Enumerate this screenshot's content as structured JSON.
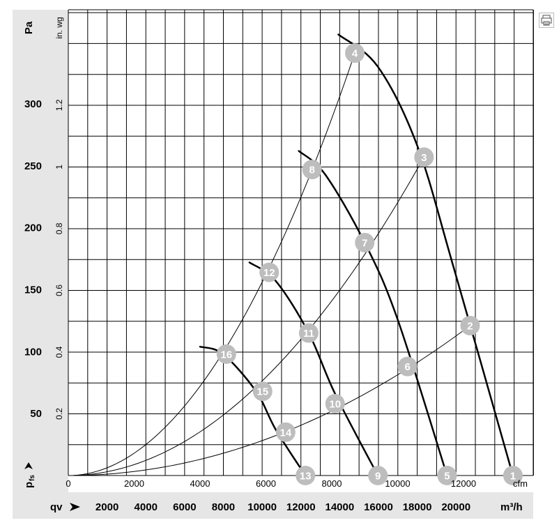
{
  "chart_data": {
    "type": "line",
    "title": "",
    "ylabel_left": "Pa",
    "ylabel_right": "in. wg",
    "x_label_cfm": "cfm",
    "x_label_m3h": "m³/h",
    "x_axis_symbol": "qv",
    "y_axis_symbol_main": "p",
    "y_axis_symbol_sub": "fs",
    "xlim_cfm": [
      0,
      13700
    ],
    "ylim_pa": [
      0,
      375
    ],
    "grid": true,
    "pa_ticks": [
      50,
      100,
      150,
      200,
      250,
      300
    ],
    "pa_tick_labels": [
      "50",
      "100",
      "150",
      "200",
      "250",
      "300"
    ],
    "inwg_ticks": [
      0.2,
      0.4,
      0.6,
      0.8,
      1.0,
      1.2
    ],
    "inwg_tick_labels": [
      "0.2",
      "0.4",
      "0.6",
      "0.8",
      "1",
      "1.2"
    ],
    "cfm_ticks": [
      0,
      2000,
      4000,
      6000,
      8000,
      10000,
      12000
    ],
    "cfm_tick_labels": [
      "0",
      "2000",
      "4000",
      "6000",
      "8000",
      "10000",
      "12000"
    ],
    "m3h_ticks": [
      2000,
      4000,
      6000,
      8000,
      10000,
      12000,
      14000,
      16000,
      18000,
      20000
    ],
    "m3h_tick_labels": [
      "2000",
      "4000",
      "6000",
      "8000",
      "10000",
      "12000",
      "14000",
      "16000",
      "18000",
      "20000"
    ],
    "fan_curves": [
      {
        "points": [
          [
            8200,
            356
          ],
          [
            9400,
            330
          ],
          [
            10600,
            266
          ],
          [
            11700,
            168
          ],
          [
            13500,
            0
          ]
        ]
      },
      {
        "points": [
          [
            7000,
            262
          ],
          [
            7800,
            243
          ],
          [
            9000,
            188
          ],
          [
            10000,
            126
          ],
          [
            11500,
            0
          ]
        ]
      },
      {
        "points": [
          [
            5500,
            172
          ],
          [
            6300,
            157
          ],
          [
            7300,
            115
          ],
          [
            8100,
            66
          ],
          [
            9400,
            0
          ]
        ]
      },
      {
        "points": [
          [
            4000,
            104
          ],
          [
            4700,
            98
          ],
          [
            5700,
            68
          ],
          [
            6300,
            37
          ],
          [
            7200,
            0
          ]
        ]
      }
    ],
    "system_curves": [
      {
        "points": [
          [
            0,
            0
          ],
          [
            8700,
            341
          ]
        ]
      },
      {
        "points": [
          [
            0,
            0
          ],
          [
            10800,
            257
          ]
        ]
      },
      {
        "points": [
          [
            0,
            0
          ],
          [
            12200,
            121
          ]
        ]
      }
    ],
    "markers": [
      {
        "label": "1",
        "x": 13500,
        "y": 0
      },
      {
        "label": "2",
        "x": 12200,
        "y": 121
      },
      {
        "label": "3",
        "x": 10800,
        "y": 257
      },
      {
        "label": "4",
        "x": 8700,
        "y": 341
      },
      {
        "label": "5",
        "x": 11500,
        "y": 0
      },
      {
        "label": "6",
        "x": 10300,
        "y": 88
      },
      {
        "label": "7",
        "x": 9000,
        "y": 188
      },
      {
        "label": "8",
        "x": 7400,
        "y": 247
      },
      {
        "label": "9",
        "x": 9400,
        "y": 0
      },
      {
        "label": "10",
        "x": 8100,
        "y": 58
      },
      {
        "label": "11",
        "x": 7300,
        "y": 115
      },
      {
        "label": "12",
        "x": 6100,
        "y": 164
      },
      {
        "label": "13",
        "x": 7200,
        "y": 0
      },
      {
        "label": "14",
        "x": 6600,
        "y": 35
      },
      {
        "label": "15",
        "x": 5900,
        "y": 68
      },
      {
        "label": "16",
        "x": 4800,
        "y": 98
      }
    ]
  },
  "colors": {
    "panel_bg": "#e6e6e6",
    "grid": "#000000",
    "curve": "#000000",
    "marker_fill": "#bdbdbd",
    "marker_text": "#ffffff"
  },
  "icons": {
    "print": "print-icon"
  }
}
